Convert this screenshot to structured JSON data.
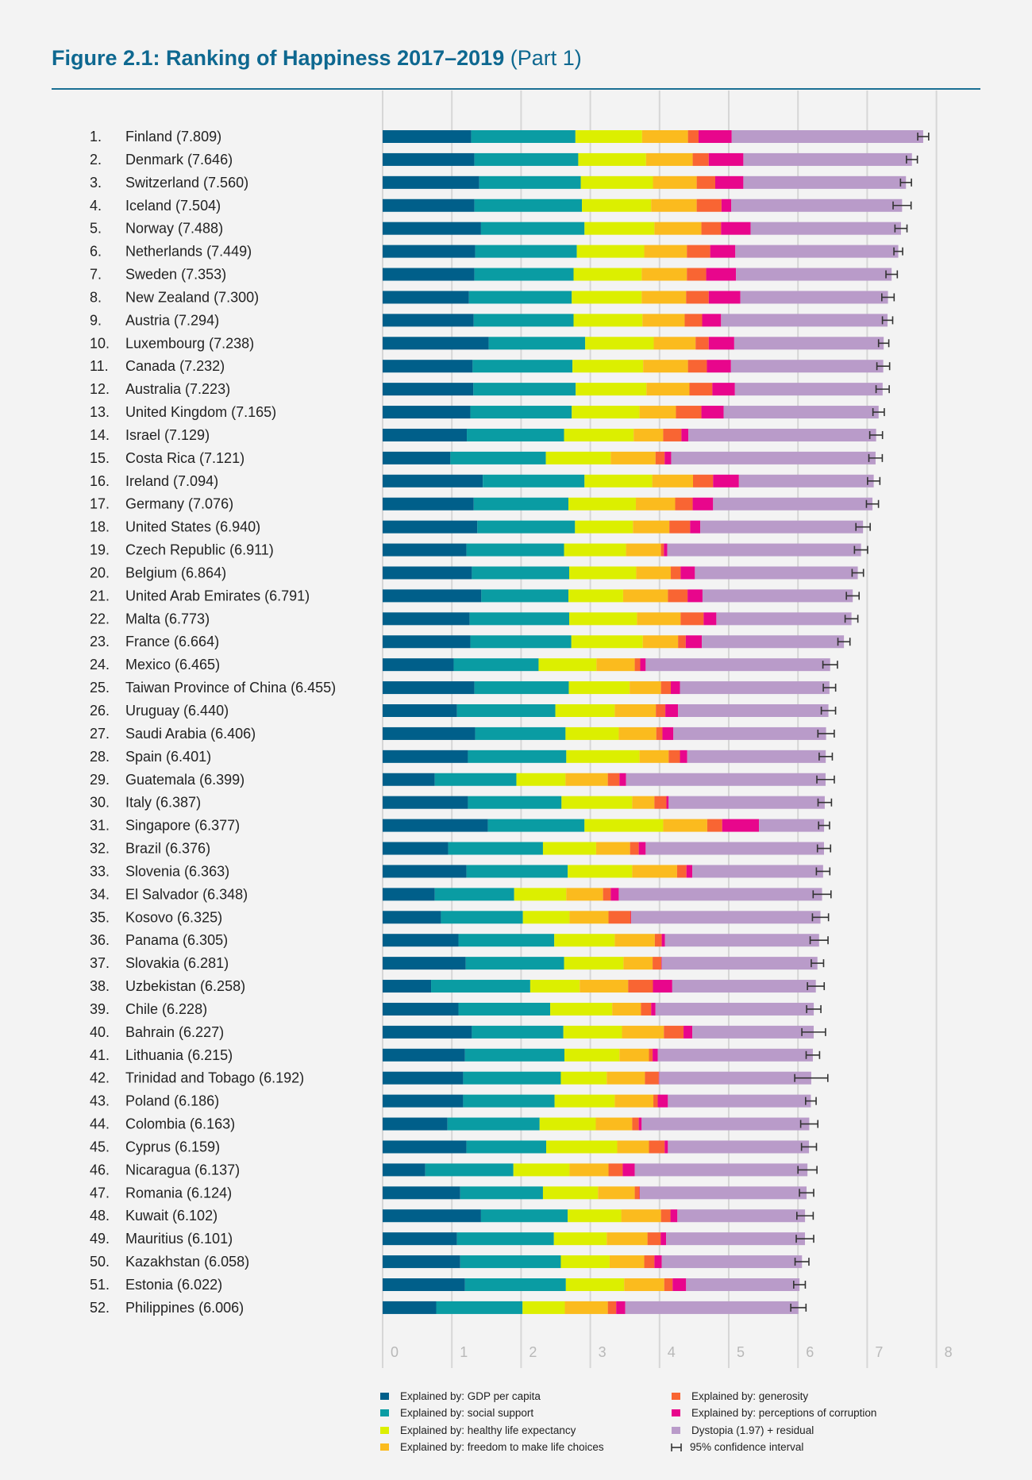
{
  "title": {
    "main": "Figure 2.1: Ranking of Happiness 2017–2019",
    "part": "(Part 1)"
  },
  "chart_data": {
    "type": "bar",
    "orientation": "horizontal",
    "stacked": true,
    "xlim": [
      0,
      8
    ],
    "x_ticks": [
      "0",
      "1",
      "2",
      "3",
      "4",
      "5",
      "6",
      "7",
      "8"
    ],
    "grid": true,
    "legend_placement": "bottom",
    "series": [
      {
        "name": "Explained by: GDP per capita",
        "color": "#005f8a"
      },
      {
        "name": "Explained by: social support",
        "color": "#0a9ca3"
      },
      {
        "name": "Explained by: healthy life expectancy",
        "color": "#dcef00"
      },
      {
        "name": "Explained by: freedom to make life choices",
        "color": "#fbbb1e"
      },
      {
        "name": "Explained by: generosity",
        "color": "#f96533"
      },
      {
        "name": "Explained by: perceptions of corruption",
        "color": "#e8068c"
      },
      {
        "name": "Dystopia (1.97) + residual",
        "color": "#b99bc9"
      }
    ],
    "ci_legend": "95% confidence interval",
    "countries": [
      {
        "rank": "1.",
        "name": "Finland",
        "score": "7.809",
        "values": [
          1.28,
          1.505,
          0.963,
          0.663,
          0.153,
          0.479,
          2.766
        ],
        "ci": 0.079
      },
      {
        "rank": "2.",
        "name": "Denmark",
        "score": "7.646",
        "values": [
          1.326,
          1.5,
          0.979,
          0.674,
          0.232,
          0.5,
          2.435
        ],
        "ci": 0.079
      },
      {
        "rank": "3.",
        "name": "Switzerland",
        "score": "7.560",
        "values": [
          1.395,
          1.468,
          1.042,
          0.632,
          0.268,
          0.406,
          2.349
        ],
        "ci": 0.079
      },
      {
        "rank": "4.",
        "name": "Iceland",
        "score": "7.504",
        "values": [
          1.326,
          1.553,
          1.0,
          0.658,
          0.358,
          0.142,
          2.467
        ],
        "ci": 0.13
      },
      {
        "rank": "5.",
        "name": "Norway",
        "score": "7.488",
        "values": [
          1.421,
          1.495,
          1.01,
          0.679,
          0.284,
          0.427,
          2.172
        ],
        "ci": 0.087
      },
      {
        "rank": "6.",
        "name": "Netherlands",
        "score": "7.449",
        "values": [
          1.337,
          1.468,
          0.974,
          0.616,
          0.337,
          0.363,
          2.354
        ],
        "ci": 0.063
      },
      {
        "rank": "7.",
        "name": "Sweden",
        "score": "7.353",
        "values": [
          1.326,
          1.432,
          0.984,
          0.653,
          0.279,
          0.431,
          2.248
        ],
        "ci": 0.082
      },
      {
        "rank": "8.",
        "name": "New Zealand",
        "score": "7.300",
        "values": [
          1.247,
          1.485,
          1.01,
          0.642,
          0.327,
          0.457,
          2.132
        ],
        "ci": 0.089
      },
      {
        "rank": "9.",
        "name": "Austria",
        "score": "7.294",
        "values": [
          1.316,
          1.442,
          0.995,
          0.61,
          0.253,
          0.273,
          2.405
        ],
        "ci": 0.074
      },
      {
        "rank": "10.",
        "name": "Luxembourg",
        "score": "7.238",
        "values": [
          1.532,
          1.394,
          0.99,
          0.605,
          0.19,
          0.368,
          2.159
        ],
        "ci": 0.074
      },
      {
        "rank": "11.",
        "name": "Canada",
        "score": "7.232",
        "values": [
          1.3,
          1.442,
          1.021,
          0.648,
          0.273,
          0.348,
          2.2
        ],
        "ci": 0.092
      },
      {
        "rank": "12.",
        "name": "Australia",
        "score": "7.223",
        "values": [
          1.311,
          1.478,
          1.022,
          0.621,
          0.331,
          0.326,
          2.134
        ],
        "ci": 0.095
      },
      {
        "rank": "13.",
        "name": "United Kingdom",
        "score": "7.165",
        "values": [
          1.268,
          1.464,
          0.979,
          0.526,
          0.368,
          0.321,
          2.239
        ],
        "ci": 0.082
      },
      {
        "rank": "14.",
        "name": "Israel",
        "score": "7.129",
        "values": [
          1.216,
          1.405,
          1.005,
          0.427,
          0.263,
          0.1,
          2.713
        ],
        "ci": 0.092
      },
      {
        "rank": "15.",
        "name": "Costa Rica",
        "score": "7.121",
        "values": [
          0.979,
          1.379,
          0.937,
          0.647,
          0.132,
          0.094,
          2.953
        ],
        "ci": 0.097
      },
      {
        "rank": "16.",
        "name": "Ireland",
        "score": "7.094",
        "values": [
          1.447,
          1.469,
          0.979,
          0.589,
          0.29,
          0.373,
          1.947
        ],
        "ci": 0.089
      },
      {
        "rank": "17.",
        "name": "Germany",
        "score": "7.076",
        "values": [
          1.316,
          1.368,
          0.974,
          0.568,
          0.253,
          0.295,
          2.302
        ],
        "ci": 0.087
      },
      {
        "rank": "18.",
        "name": "United States",
        "score": "6.940",
        "values": [
          1.368,
          1.411,
          0.837,
          0.526,
          0.3,
          0.147,
          2.351
        ],
        "ci": 0.103
      },
      {
        "rank": "19.",
        "name": "Czech Republic",
        "score": "6.911",
        "values": [
          1.211,
          1.41,
          0.895,
          0.505,
          0.042,
          0.048,
          2.8
        ],
        "ci": 0.095
      },
      {
        "rank": "20.",
        "name": "Belgium",
        "score": "6.864",
        "values": [
          1.289,
          1.406,
          0.968,
          0.5,
          0.142,
          0.206,
          2.353
        ],
        "ci": 0.082
      },
      {
        "rank": "21.",
        "name": "United Arab Emirates",
        "score": "6.791",
        "values": [
          1.426,
          1.258,
          0.79,
          0.647,
          0.284,
          0.216,
          2.17
        ],
        "ci": 0.092
      },
      {
        "rank": "22.",
        "name": "Malta",
        "score": "6.773",
        "values": [
          1.258,
          1.437,
          0.979,
          0.631,
          0.332,
          0.184,
          1.952
        ],
        "ci": 0.092
      },
      {
        "rank": "23.",
        "name": "France",
        "score": "6.664",
        "values": [
          1.268,
          1.458,
          1.032,
          0.51,
          0.111,
          0.232,
          2.053
        ],
        "ci": 0.087
      },
      {
        "rank": "24.",
        "name": "Mexico",
        "score": "6.465",
        "values": [
          1.026,
          1.227,
          0.836,
          0.553,
          0.079,
          0.079,
          2.665
        ],
        "ci": 0.105
      },
      {
        "rank": "25.",
        "name": "Taiwan Province of China",
        "score": "6.455",
        "values": [
          1.326,
          1.363,
          0.879,
          0.453,
          0.142,
          0.132,
          2.16
        ],
        "ci": 0.089
      },
      {
        "rank": "26.",
        "name": "Uruguay",
        "score": "6.440",
        "values": [
          1.074,
          1.421,
          0.858,
          0.594,
          0.137,
          0.184,
          2.172
        ],
        "ci": 0.103
      },
      {
        "rank": "27.",
        "name": "Saudi Arabia",
        "score": "6.406",
        "values": [
          1.337,
          1.305,
          0.769,
          0.542,
          0.089,
          0.158,
          2.206
        ],
        "ci": 0.118
      },
      {
        "rank": "28.",
        "name": "Spain",
        "score": "6.401",
        "values": [
          1.232,
          1.421,
          1.058,
          0.421,
          0.163,
          0.105,
          2.001
        ],
        "ci": 0.095
      },
      {
        "rank": "29.",
        "name": "Guatemala",
        "score": "6.399",
        "values": [
          0.753,
          1.179,
          0.71,
          0.611,
          0.168,
          0.095,
          2.883
        ],
        "ci": 0.126
      },
      {
        "rank": "30.",
        "name": "Italy",
        "score": "6.387",
        "values": [
          1.232,
          1.352,
          1.021,
          0.321,
          0.174,
          0.032,
          2.255
        ],
        "ci": 0.097
      },
      {
        "rank": "31.",
        "name": "Singapore",
        "score": "6.377",
        "values": [
          1.521,
          1.395,
          1.137,
          0.636,
          0.216,
          0.532,
          0.94
        ],
        "ci": 0.079
      },
      {
        "rank": "32.",
        "name": "Brazil",
        "score": "6.376",
        "values": [
          0.947,
          1.369,
          0.768,
          0.49,
          0.126,
          0.1,
          2.576
        ],
        "ci": 0.095
      },
      {
        "rank": "33.",
        "name": "Slovenia",
        "score": "6.363",
        "values": [
          1.211,
          1.463,
          0.931,
          0.648,
          0.136,
          0.085,
          1.889
        ],
        "ci": 0.097
      },
      {
        "rank": "34.",
        "name": "El Salvador",
        "score": "6.348",
        "values": [
          0.753,
          1.147,
          0.753,
          0.531,
          0.111,
          0.116,
          2.937
        ],
        "ci": 0.129
      },
      {
        "rank": "35.",
        "name": "Kosovo",
        "score": "6.325",
        "values": [
          0.842,
          1.184,
          0.674,
          0.563,
          0.321,
          0.006,
          2.735
        ],
        "ci": 0.116
      },
      {
        "rank": "36.",
        "name": "Panama",
        "score": "6.305",
        "values": [
          1.095,
          1.384,
          0.874,
          0.579,
          0.1,
          0.047,
          2.226
        ],
        "ci": 0.129
      },
      {
        "rank": "37.",
        "name": "Slovakia",
        "score": "6.281",
        "values": [
          1.2,
          1.421,
          0.858,
          0.421,
          0.126,
          0.006,
          2.249
        ],
        "ci": 0.089
      },
      {
        "rank": "38.",
        "name": "Uzbekistan",
        "score": "6.258",
        "values": [
          0.7,
          1.432,
          0.715,
          0.7,
          0.358,
          0.279,
          2.074
        ],
        "ci": 0.121
      },
      {
        "rank": "39.",
        "name": "Chile",
        "score": "6.228",
        "values": [
          1.095,
          1.326,
          0.895,
          0.416,
          0.147,
          0.063,
          2.286
        ],
        "ci": 0.103
      },
      {
        "rank": "40.",
        "name": "Bahrain",
        "score": "6.227",
        "values": [
          1.289,
          1.322,
          0.847,
          0.605,
          0.284,
          0.127,
          1.753
        ],
        "ci": 0.171
      },
      {
        "rank": "41.",
        "name": "Lithuania",
        "score": "6.215",
        "values": [
          1.189,
          1.437,
          0.795,
          0.426,
          0.053,
          0.074,
          2.241
        ],
        "ci": 0.097
      },
      {
        "rank": "42.",
        "name": "Trinidad and Tobago",
        "score": "6.192",
        "values": [
          1.163,
          1.411,
          0.663,
          0.552,
          0.2,
          0.006,
          2.197
        ],
        "ci": 0.239
      },
      {
        "rank": "43.",
        "name": "Poland",
        "score": "6.186",
        "values": [
          1.163,
          1.321,
          0.869,
          0.558,
          0.063,
          0.147,
          2.065
        ],
        "ci": 0.076
      },
      {
        "rank": "44.",
        "name": "Colombia",
        "score": "6.163",
        "values": [
          0.937,
          1.331,
          0.811,
          0.526,
          0.095,
          0.042,
          2.421
        ],
        "ci": 0.124
      },
      {
        "rank": "45.",
        "name": "Cyprus",
        "score": "6.159",
        "values": [
          1.211,
          1.152,
          1.026,
          0.458,
          0.227,
          0.047,
          2.038
        ],
        "ci": 0.108
      },
      {
        "rank": "46.",
        "name": "Nicaragua",
        "score": "6.137",
        "values": [
          0.616,
          1.273,
          0.811,
          0.563,
          0.205,
          0.174,
          2.495
        ],
        "ci": 0.137
      },
      {
        "rank": "47.",
        "name": "Romania",
        "score": "6.124",
        "values": [
          1.121,
          1.195,
          0.795,
          0.531,
          0.069,
          0.005,
          2.408
        ],
        "ci": 0.103
      },
      {
        "rank": "48.",
        "name": "Kuwait",
        "score": "6.102",
        "values": [
          1.421,
          1.253,
          0.773,
          0.574,
          0.137,
          0.1,
          1.844
        ],
        "ci": 0.118
      },
      {
        "rank": "49.",
        "name": "Mauritius",
        "score": "6.101",
        "values": [
          1.074,
          1.4,
          0.763,
          0.589,
          0.19,
          0.079,
          2.006
        ],
        "ci": 0.126
      },
      {
        "rank": "50.",
        "name": "Kazakhstan",
        "score": "6.058",
        "values": [
          1.121,
          1.453,
          0.705,
          0.5,
          0.147,
          0.106,
          2.026
        ],
        "ci": 0.1
      },
      {
        "rank": "51.",
        "name": "Estonia",
        "score": "6.022",
        "values": [
          1.189,
          1.458,
          0.842,
          0.579,
          0.121,
          0.195,
          1.638
        ],
        "ci": 0.084
      },
      {
        "rank": "52.",
        "name": "Philippines",
        "score": "6.006",
        "values": [
          0.774,
          1.247,
          0.611,
          0.621,
          0.121,
          0.131,
          2.501
        ],
        "ci": 0.11
      }
    ]
  }
}
